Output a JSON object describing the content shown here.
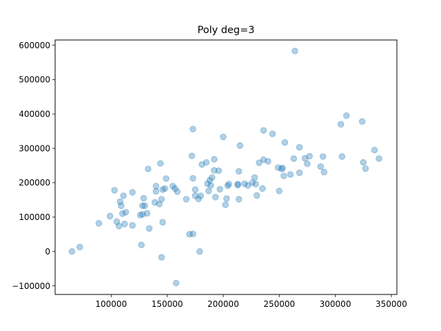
{
  "chart_data": {
    "type": "scatter",
    "title": "Poly deg=3",
    "xlabel": "",
    "ylabel": "",
    "xlim": [
      50000,
      355000
    ],
    "ylim": [
      -125000,
      615000
    ],
    "grid": false,
    "xticks": [
      {
        "value": 100000,
        "label": "100000"
      },
      {
        "value": 150000,
        "label": "150000"
      },
      {
        "value": 200000,
        "label": "200000"
      },
      {
        "value": 250000,
        "label": "250000"
      },
      {
        "value": 300000,
        "label": "300000"
      },
      {
        "value": 350000,
        "label": "350000"
      }
    ],
    "yticks": [
      {
        "value": -100000,
        "label": "−100000"
      },
      {
        "value": 0,
        "label": "0"
      },
      {
        "value": 100000,
        "label": "100000"
      },
      {
        "value": 200000,
        "label": "200000"
      },
      {
        "value": 300000,
        "label": "300000"
      },
      {
        "value": 400000,
        "label": "400000"
      },
      {
        "value": 500000,
        "label": "500000"
      },
      {
        "value": 600000,
        "label": "600000"
      }
    ],
    "marker_color": "#1f77b4",
    "marker_alpha": 0.35,
    "series": [
      {
        "points": [
          [
            65000,
            0
          ],
          [
            72000,
            13000
          ],
          [
            89000,
            82000
          ],
          [
            99000,
            103000
          ],
          [
            103000,
            178000
          ],
          [
            105000,
            87000
          ],
          [
            107000,
            74000
          ],
          [
            108000,
            145000
          ],
          [
            109000,
            133000
          ],
          [
            110000,
            110000
          ],
          [
            111000,
            162000
          ],
          [
            112000,
            80000
          ],
          [
            113000,
            114000
          ],
          [
            119000,
            76000
          ],
          [
            119000,
            172000
          ],
          [
            126000,
            106000
          ],
          [
            127000,
            19000
          ],
          [
            128000,
            108000
          ],
          [
            128000,
            133000
          ],
          [
            129000,
            155000
          ],
          [
            130000,
            133000
          ],
          [
            132000,
            111000
          ],
          [
            133000,
            240000
          ],
          [
            134000,
            67000
          ],
          [
            139000,
            143000
          ],
          [
            140000,
            190000
          ],
          [
            140000,
            175000
          ],
          [
            143000,
            138000
          ],
          [
            144000,
            256000
          ],
          [
            145000,
            -17000
          ],
          [
            145000,
            152000
          ],
          [
            146000,
            85000
          ],
          [
            146000,
            180000
          ],
          [
            148000,
            183000
          ],
          [
            149000,
            212000
          ],
          [
            155000,
            190000
          ],
          [
            157000,
            183000
          ],
          [
            158000,
            -92000
          ],
          [
            159000,
            174000
          ],
          [
            167000,
            152000
          ],
          [
            170000,
            50000
          ],
          [
            172000,
            278000
          ],
          [
            173000,
            51000
          ],
          [
            173000,
            356000
          ],
          [
            173000,
            213000
          ],
          [
            175000,
            162000
          ],
          [
            175000,
            180000
          ],
          [
            178000,
            153000
          ],
          [
            179000,
            0
          ],
          [
            180000,
            162000
          ],
          [
            181000,
            253000
          ],
          [
            185000,
            259000
          ],
          [
            186000,
            197000
          ],
          [
            187000,
            176000
          ],
          [
            188000,
            207000
          ],
          [
            189000,
            192000
          ],
          [
            190000,
            215000
          ],
          [
            192000,
            268000
          ],
          [
            192000,
            236000
          ],
          [
            193000,
            158000
          ],
          [
            196000,
            235000
          ],
          [
            197000,
            181000
          ],
          [
            200000,
            333000
          ],
          [
            202000,
            136000
          ],
          [
            203000,
            154000
          ],
          [
            204000,
            191000
          ],
          [
            205000,
            196000
          ],
          [
            213000,
            196000
          ],
          [
            213000,
            193000
          ],
          [
            214000,
            152000
          ],
          [
            214000,
            233000
          ],
          [
            215000,
            308000
          ],
          [
            219000,
            197000
          ],
          [
            222000,
            192000
          ],
          [
            226000,
            200000
          ],
          [
            228000,
            215000
          ],
          [
            229000,
            196000
          ],
          [
            230000,
            163000
          ],
          [
            232000,
            258000
          ],
          [
            235000,
            183000
          ],
          [
            236000,
            267000
          ],
          [
            236000,
            352000
          ],
          [
            240000,
            262000
          ],
          [
            244000,
            342000
          ],
          [
            249000,
            244000
          ],
          [
            250000,
            176000
          ],
          [
            252000,
            240000
          ],
          [
            253000,
            243000
          ],
          [
            254000,
            220000
          ],
          [
            255000,
            317000
          ],
          [
            260000,
            224000
          ],
          [
            263000,
            270000
          ],
          [
            264000,
            583000
          ],
          [
            268000,
            303000
          ],
          [
            268000,
            229000
          ],
          [
            273000,
            271000
          ],
          [
            275000,
            255000
          ],
          [
            277000,
            277000
          ],
          [
            287000,
            247000
          ],
          [
            289000,
            276000
          ],
          [
            290000,
            231000
          ],
          [
            305000,
            370000
          ],
          [
            306000,
            276000
          ],
          [
            310000,
            395000
          ],
          [
            324000,
            378000
          ],
          [
            325000,
            259000
          ],
          [
            327000,
            241000
          ],
          [
            335000,
            295000
          ],
          [
            339000,
            270000
          ]
        ]
      }
    ]
  }
}
